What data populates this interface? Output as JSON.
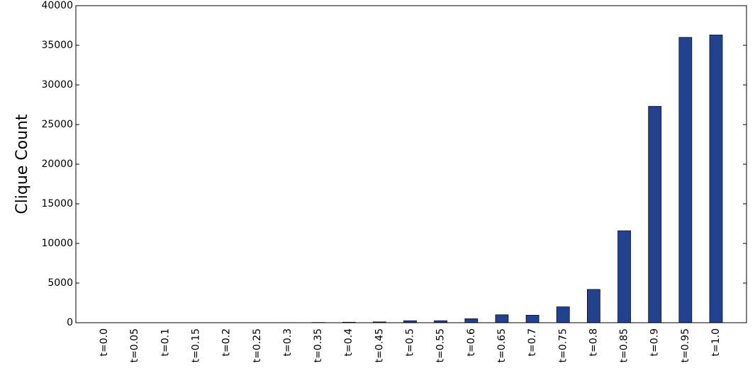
{
  "chart_data": {
    "type": "bar",
    "y_label": "Clique Count",
    "categories": [
      "t=0.0",
      "t=0.05",
      "t=0.1",
      "t=0.15",
      "t=0.2",
      "t=0.25",
      "t=0.3",
      "t=0.35",
      "t=0.4",
      "t=0.45",
      "t=0.5",
      "t=0.55",
      "t=0.6",
      "t=0.65",
      "t=0.7",
      "t=0.75",
      "t=0.8",
      "t=0.85",
      "t=0.9",
      "t=0.95",
      "t=1.0"
    ],
    "values": [
      0,
      0,
      0,
      0,
      0,
      0,
      10,
      30,
      60,
      100,
      250,
      250,
      500,
      1000,
      950,
      2000,
      4200,
      11600,
      27300,
      36000,
      36300
    ],
    "color": "#22418f",
    "ylim": [
      0,
      40000
    ],
    "yticks": [
      0,
      5000,
      10000,
      15000,
      20000,
      25000,
      30000,
      35000,
      40000
    ],
    "grid": false
  }
}
